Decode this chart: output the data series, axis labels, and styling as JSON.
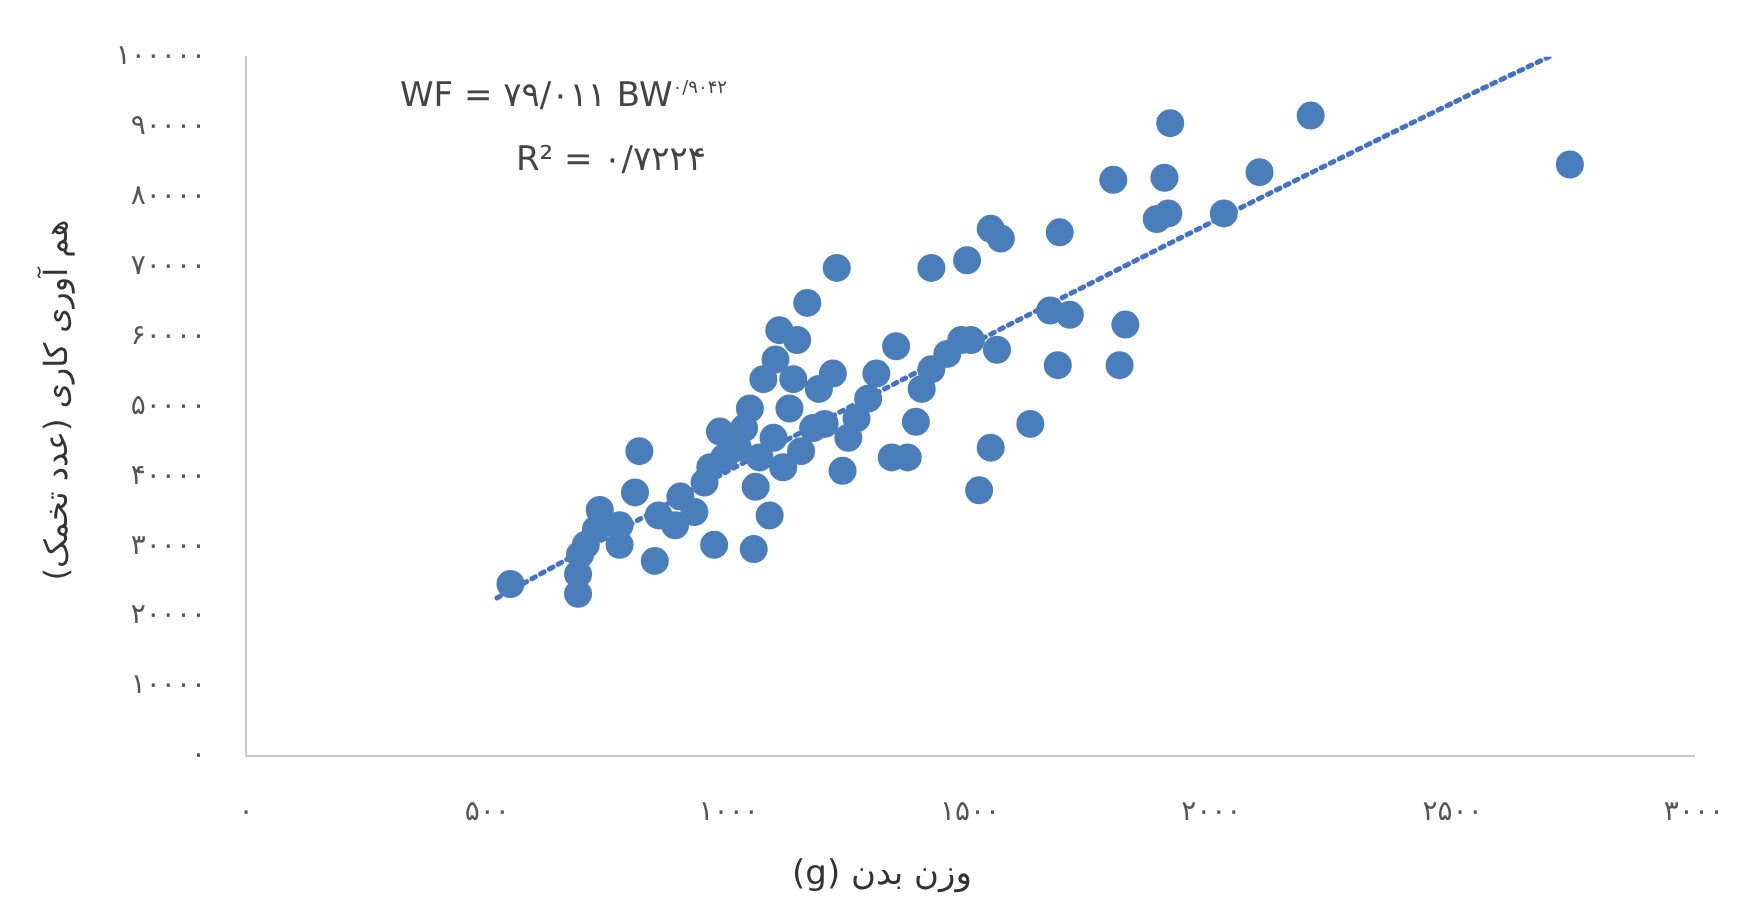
{
  "chart_data": {
    "type": "scatter",
    "xlabel": "وزن بدن (g)",
    "ylabel": "هم آوری کاری (عدد تخمک)",
    "annotations": [
      "WF = ۷۹/۰۱۱ BW$^{۰/۹۰۴۲}$",
      "R² = ۰/۷۲۲۴"
    ],
    "xlim": [
      0,
      3000
    ],
    "xticks": [
      {
        "value": 0,
        "label": "۰"
      },
      {
        "value": 500,
        "label": "۵۰۰"
      },
      {
        "value": 1000,
        "label": "۱۰۰۰"
      },
      {
        "value": 1500,
        "label": "۱۵۰۰"
      },
      {
        "value": 2000,
        "label": "۲۰۰۰"
      },
      {
        "value": 2500,
        "label": "۲۵۰۰"
      },
      {
        "value": 3000,
        "label": "۳۰۰۰"
      }
    ],
    "ylim": [
      0,
      100000
    ],
    "yticks": [
      {
        "value": 0,
        "label": "۰"
      },
      {
        "value": 10000,
        "label": "۱۰۰۰۰"
      },
      {
        "value": 20000,
        "label": "۲۰۰۰۰"
      },
      {
        "value": 30000,
        "label": "۳۰۰۰۰"
      },
      {
        "value": 40000,
        "label": "۴۰۰۰۰"
      },
      {
        "value": 50000,
        "label": "۵۰۰۰۰"
      },
      {
        "value": 60000,
        "label": "۶۰۰۰۰"
      },
      {
        "value": 70000,
        "label": "۷۰۰۰۰"
      },
      {
        "value": 80000,
        "label": "۸۰۰۰۰"
      },
      {
        "value": 90000,
        "label": "۹۰۰۰۰"
      },
      {
        "value": 100000,
        "label": "۱۰۰۰۰۰"
      }
    ],
    "grid": false,
    "legend": false,
    "marker": "circle",
    "series": [
      {
        "color": "#4a7ebb",
        "x": [
          548,
          688,
          688,
          692,
          704,
          725,
          733,
          774,
          774,
          806,
          815,
          847,
          855,
          889,
          900,
          929,
          950,
          962,
          970,
          982,
          991,
          1019,
          1032,
          1044,
          1052,
          1056,
          1064,
          1072,
          1085,
          1093,
          1097,
          1105,
          1113,
          1126,
          1134,
          1142,
          1150,
          1163,
          1175,
          1187,
          1199,
          1216,
          1224,
          1236,
          1248,
          1265,
          1289,
          1306,
          1338,
          1347,
          1371,
          1388,
          1400,
          1420,
          1420,
          1453,
          1482,
          1494,
          1502,
          1519,
          1543,
          1543,
          1564,
          1556,
          1625,
          1666,
          1686,
          1682,
          1707,
          1797,
          1810,
          1822,
          1887,
          1903,
          1911,
          1915,
          2026,
          2100,
          2206,
          2743
        ],
        "values": [
          24600,
          26000,
          23200,
          28800,
          30200,
          32400,
          35200,
          33000,
          30200,
          37700,
          43600,
          27900,
          34400,
          33000,
          37100,
          34900,
          39100,
          41300,
          30200,
          46400,
          42700,
          44100,
          46900,
          49700,
          29600,
          38500,
          42700,
          53900,
          34400,
          45500,
          56700,
          60900,
          41300,
          49700,
          53900,
          59500,
          43600,
          64800,
          46900,
          52500,
          47500,
          54700,
          69800,
          40800,
          45500,
          48300,
          51100,
          54700,
          42700,
          58600,
          42700,
          47800,
          52500,
          55300,
          69800,
          57500,
          59500,
          70900,
          59500,
          38000,
          44100,
          75400,
          74000,
          58100,
          47500,
          63700,
          74900,
          55900,
          63100,
          82400,
          55900,
          61700,
          76800,
          82700,
          77600,
          90500,
          77600,
          83500,
          91600,
          84600
        ]
      },
      {
        "type": "line",
        "color": "#4472c4",
        "marker": "none",
        "line_style": "dotted",
        "x": [
          520,
          1000,
          1500,
          2000,
          2500,
          2700
        ],
        "values": [
          22600,
          40800,
          58800,
          76300,
          93400,
          100000
        ]
      }
    ]
  }
}
